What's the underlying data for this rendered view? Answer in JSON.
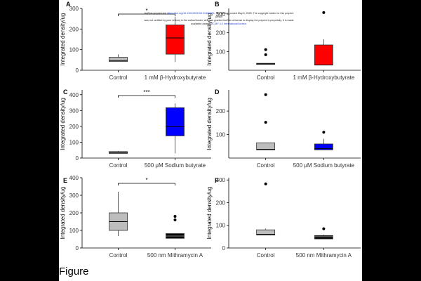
{
  "figure_caption": "Figure",
  "preprint_notice": {
    "line1_a": "bioRxiv preprint doi: ",
    "doi_link": "https://doi.org/10.1101/2025.05.03.652051",
    "line1_b": "; this version posted May 8, 2025. The copyright holder for this preprint (which",
    "line2": "was not certified by peer review) is the author/funder, who has granted bioRxiv a license to display the preprint in perpetuity. It is made",
    "line3_a": "available under a",
    "license_link": "CC-BY 4.0 International license",
    "line3_b": "."
  },
  "colors": {
    "control": "#bdbdbd",
    "bhb": "#ff0000",
    "butyrate": "#0000ff",
    "mithramycin": "#000000",
    "median_on_dark": "#888888"
  },
  "chart_data": [
    {
      "panel": "A",
      "type": "box",
      "ylabel": "Integrated density/ug",
      "ylim": [
        0,
        300
      ],
      "yticks": [
        "0",
        "100",
        "200",
        "300"
      ],
      "categories": [
        "Control",
        "1 mM β-Hydroxybutyrate"
      ],
      "significance": "*",
      "boxes": [
        {
          "q1": 42,
          "median": 47,
          "q3": 63,
          "lo": 42,
          "hi": 77,
          "outliers": [],
          "color": "#bdbdbd"
        },
        {
          "q1": 78,
          "median": 157,
          "q3": 220,
          "lo": 40,
          "hi": 260,
          "outliers": [],
          "color": "#ff0000"
        }
      ]
    },
    {
      "panel": "B",
      "type": "box",
      "ylabel": "Integrated density/ug",
      "ylim": [
        0,
        330
      ],
      "yticks": [
        "100",
        "200",
        "300"
      ],
      "categories": [
        "Control",
        "1 mM β-Hydroxybutyrate"
      ],
      "significance": "",
      "boxes": [
        {
          "q1": 32,
          "median": 34,
          "q3": 37,
          "lo": 32,
          "hi": 38,
          "outliers": [
            83,
            110
          ],
          "color": "#bdbdbd"
        },
        {
          "q1": 28,
          "median": 28,
          "q3": 135,
          "lo": 28,
          "hi": 165,
          "outliers": [
            308
          ],
          "color": "#ff0000"
        }
      ]
    },
    {
      "panel": "C",
      "type": "box",
      "ylabel": "Integrated density/ug",
      "ylim": [
        0,
        430
      ],
      "yticks": [
        "0",
        "100",
        "200",
        "300",
        "400"
      ],
      "categories": [
        "Control",
        "500 μM Sodium butyrate"
      ],
      "significance": "***",
      "boxes": [
        {
          "q1": 28,
          "median": 33,
          "q3": 41,
          "lo": 28,
          "hi": 45,
          "outliers": [],
          "color": "#bdbdbd"
        },
        {
          "q1": 140,
          "median": 197,
          "q3": 318,
          "lo": 30,
          "hi": 345,
          "outliers": [],
          "color": "#0000ff"
        }
      ]
    },
    {
      "panel": "D",
      "type": "box",
      "ylabel": "Integrated density/ug",
      "ylim": [
        0,
        290
      ],
      "yticks": [
        "100",
        "200"
      ],
      "categories": [
        "Control",
        "500 μM Sodium butyrate"
      ],
      "significance": "",
      "boxes": [
        {
          "q1": 35,
          "median": 37,
          "q3": 65,
          "lo": 35,
          "hi": 66,
          "outliers": [
            152,
            270
          ],
          "color": "#bdbdbd"
        },
        {
          "q1": 35,
          "median": 40,
          "q3": 60,
          "lo": 35,
          "hi": 82,
          "outliers": [
            110
          ],
          "color": "#0000ff"
        }
      ]
    },
    {
      "panel": "E",
      "type": "box",
      "ylabel": "Integrated density/ug",
      "ylim": [
        0,
        400
      ],
      "yticks": [
        "0",
        "100",
        "200",
        "300",
        "400"
      ],
      "categories": [
        "Control",
        "500 nm Mithramycin A"
      ],
      "significance": "*",
      "boxes": [
        {
          "q1": 100,
          "median": 150,
          "q3": 200,
          "lo": 68,
          "hi": 320,
          "outliers": [],
          "color": "#bdbdbd"
        },
        {
          "q1": 55,
          "median": 68,
          "q3": 82,
          "lo": 55,
          "hi": 82,
          "outliers": [
            160,
            180
          ],
          "color": "#000000"
        }
      ]
    },
    {
      "panel": "F",
      "type": "box",
      "ylabel": "Integrated density/ug",
      "ylim": [
        0,
        310
      ],
      "yticks": [
        "0",
        "100",
        "200",
        "300"
      ],
      "categories": [
        "Control",
        "500 nm Mithramycin A"
      ],
      "significance": "",
      "boxes": [
        {
          "q1": 57,
          "median": 60,
          "q3": 80,
          "lo": 57,
          "hi": 85,
          "outliers": [
            283
          ],
          "color": "#bdbdbd"
        },
        {
          "q1": 40,
          "median": 50,
          "q3": 55,
          "lo": 40,
          "hi": 58,
          "outliers": [
            85
          ],
          "color": "#000000"
        }
      ]
    }
  ]
}
